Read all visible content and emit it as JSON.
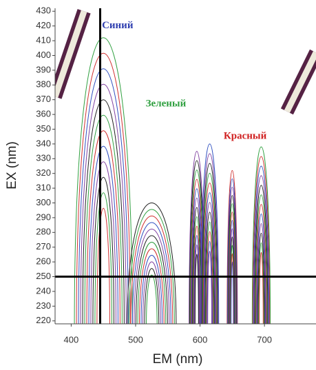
{
  "chart_data": {
    "type": "contour",
    "x_label": "EM (nm)",
    "y_label": "EX (nm)",
    "xlim": [
      375,
      780
    ],
    "xticks": [
      400,
      500,
      600,
      700
    ],
    "ylim": [
      218,
      432
    ],
    "yticks": [
      220,
      230,
      240,
      250,
      260,
      270,
      280,
      290,
      300,
      310,
      320,
      330,
      340,
      350,
      360,
      370,
      380,
      390,
      400,
      410,
      420,
      430
    ],
    "contour_colors": [
      "#3050c0",
      "#d03030",
      "#30a040",
      "#202020",
      "#8040a0"
    ],
    "peaks": [
      {
        "em": 450,
        "ex_max": 412,
        "width": 45
      },
      {
        "em": 525,
        "ex_max": 300,
        "width": 38
      },
      {
        "em": 595,
        "ex_max": 335,
        "width": 12
      },
      {
        "em": 615,
        "ex_max": 340,
        "width": 14
      },
      {
        "em": 650,
        "ex_max": 322,
        "width": 8
      },
      {
        "em": 695,
        "ex_max": 338,
        "width": 14
      }
    ],
    "scatter_bands": [
      {
        "em": [
          375,
          420
        ],
        "ex": [
          372,
          430
        ]
      },
      {
        "em": [
          735,
          780
        ],
        "ex": [
          362,
          402
        ]
      }
    ],
    "crosshair": {
      "em": 445,
      "ex": 250
    },
    "annotations": [
      {
        "text": "Синий",
        "em": 472,
        "ex": 420,
        "color": "#3040b0"
      },
      {
        "text": "Зеленый",
        "em": 547,
        "ex": 367,
        "color": "#30a040"
      },
      {
        "text": "Красный",
        "em": 670,
        "ex": 345,
        "color": "#d02020"
      }
    ]
  }
}
